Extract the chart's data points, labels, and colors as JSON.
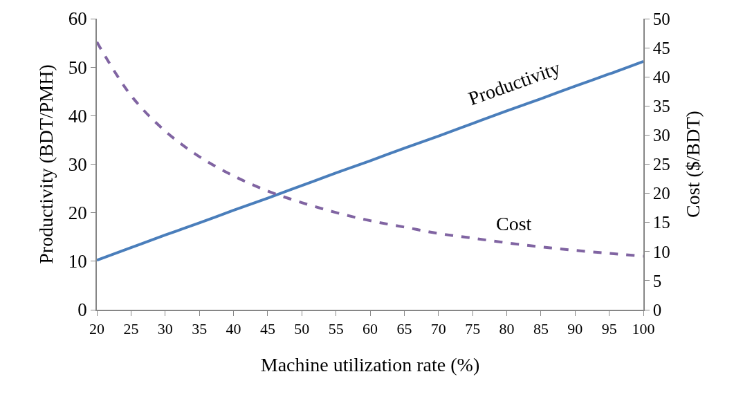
{
  "chart_data": {
    "type": "line",
    "xlabel": "Machine utilization rate (%)",
    "ylabel": "Productivity (BDT/PMH)",
    "y2label": "Cost ($/BDT)",
    "x": [
      20,
      25,
      30,
      35,
      40,
      45,
      50,
      55,
      60,
      65,
      70,
      75,
      80,
      85,
      90,
      95,
      100
    ],
    "series": [
      {
        "name": "Productivity",
        "color": "#4a7ebb",
        "line_style": "solid",
        "values": [
          10.2,
          12.8,
          15.4,
          17.9,
          20.5,
          23.0,
          25.6,
          28.2,
          30.7,
          33.3,
          35.8,
          38.4,
          41.0,
          43.5,
          46.1,
          48.6,
          51.2
        ]
      },
      {
        "name": "Cost",
        "color": "#8064a2",
        "line_style": "dashed",
        "axis": "y2",
        "values": [
          46.0,
          36.8,
          30.7,
          26.3,
          23.0,
          20.4,
          18.4,
          16.7,
          15.3,
          14.2,
          13.1,
          12.3,
          11.5,
          10.8,
          10.2,
          9.7,
          9.2
        ]
      }
    ],
    "xlim": [
      20,
      100
    ],
    "xticks": [
      20,
      25,
      30,
      35,
      40,
      45,
      50,
      55,
      60,
      65,
      70,
      75,
      80,
      85,
      90,
      95,
      100
    ],
    "ylim": [
      0,
      60
    ],
    "yticks": [
      0,
      10,
      20,
      30,
      40,
      50,
      60
    ],
    "y2lim": [
      0,
      50
    ],
    "y2ticks": [
      0,
      5,
      10,
      15,
      20,
      25,
      30,
      35,
      40,
      45,
      50
    ]
  }
}
